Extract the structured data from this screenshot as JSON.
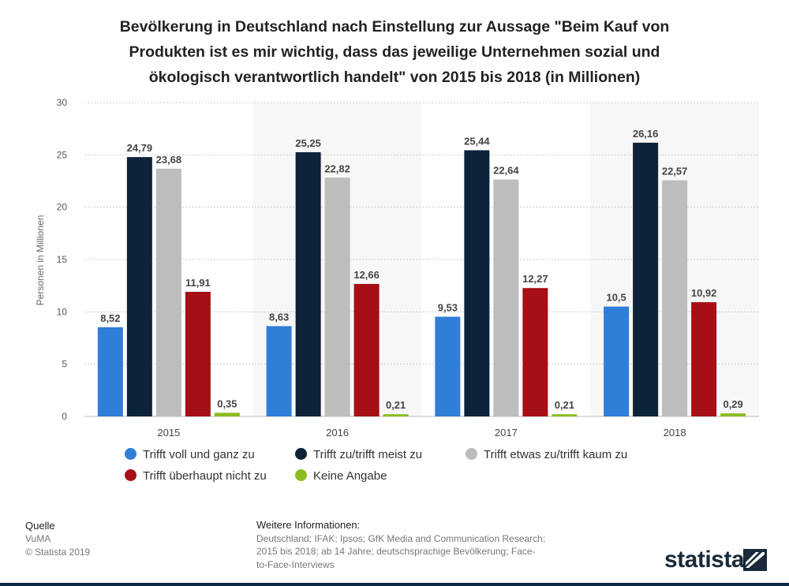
{
  "chart_data": {
    "type": "bar",
    "title": "Bevölkerung in Deutschland nach Einstellung zur Aussage \"Beim Kauf von Produkten ist es mir wichtig, dass das jeweilige Unternehmen sozial und ökologisch verantwortlich handelt\" von 2015 bis 2018 (in Millionen)",
    "title_lines": [
      "Bevölkerung in Deutschland nach Einstellung zur Aussage \"Beim Kauf von",
      "Produkten ist es mir wichtig, dass das jeweilige Unternehmen sozial und",
      "ökologisch verantwortlich handelt\" von 2015 bis 2018 (in Millionen)"
    ],
    "xlabel": "",
    "ylabel": "Personen in Millionen",
    "ylim": [
      0,
      30
    ],
    "yticks": [
      0,
      5,
      10,
      15,
      20,
      25,
      30
    ],
    "grid": true,
    "legend_position": "bottom",
    "categories": [
      "2015",
      "2016",
      "2017",
      "2018"
    ],
    "series": [
      {
        "name": "Trifft voll und ganz zu",
        "color": "#2f7ed8",
        "values": [
          8.52,
          8.63,
          9.53,
          10.5
        ],
        "labels": [
          "8,52",
          "8,63",
          "9,53",
          "10,5"
        ]
      },
      {
        "name": "Trifft zu/trifft meist zu",
        "color": "#0d233a",
        "values": [
          24.79,
          25.25,
          25.44,
          26.16
        ],
        "labels": [
          "24,79",
          "25,25",
          "25,44",
          "26,16"
        ]
      },
      {
        "name": "Trifft etwas zu/trifft kaum zu",
        "color": "#bdbdbd",
        "values": [
          23.68,
          22.82,
          22.64,
          22.57
        ],
        "labels": [
          "23,68",
          "22,82",
          "22,64",
          "22,57"
        ]
      },
      {
        "name": "Trifft überhaupt nicht zu",
        "color": "#a50f15",
        "values": [
          11.91,
          12.66,
          12.27,
          10.92
        ],
        "labels": [
          "11,91",
          "12,66",
          "12,27",
          "10,92"
        ]
      },
      {
        "name": "Keine Angabe",
        "color": "#8bbc21",
        "values": [
          0.35,
          0.21,
          0.21,
          0.29
        ],
        "labels": [
          "0,35",
          "0,21",
          "0,21",
          "0,29"
        ]
      }
    ]
  },
  "source": {
    "heading": "Quelle",
    "lines": [
      "VuMA",
      "© Statista 2019"
    ]
  },
  "info": {
    "heading": "Weitere Informationen:",
    "lines": [
      "Deutschland; IFAK; Ipsos; GfK Media and Communication Research;",
      "2015 bis 2018; ab 14 Jahre; deutschsprachige Bevölkerung; Face-",
      "to-Face-Interviews"
    ]
  },
  "branding": {
    "logo_text": "statista",
    "logo_icon": "statista-flag-icon",
    "bar_color": "#0e2a47"
  }
}
